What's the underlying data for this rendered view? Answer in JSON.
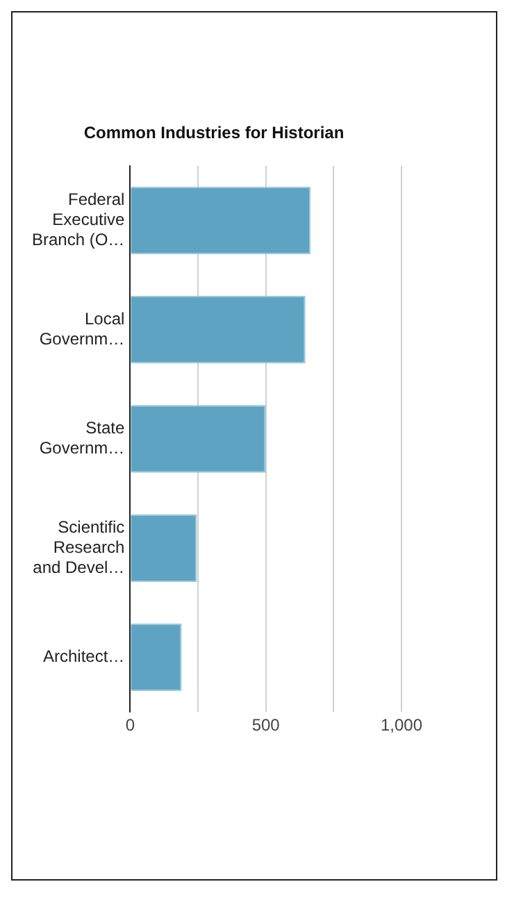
{
  "chart_data": {
    "type": "bar",
    "orientation": "horizontal",
    "title": "Common Industries for Historian",
    "categories": [
      "Federal Executive Branch (O…",
      "Local Governm…",
      "State Governm…",
      "Scientific Research and Devel…",
      "Architect…"
    ],
    "values": [
      665,
      646,
      500,
      246,
      190
    ],
    "color": "#5ea4c2",
    "xlim": [
      0,
      1000
    ],
    "xticks": [
      0,
      {
        "value": 250,
        "label": null
      },
      500,
      {
        "value": 750,
        "label": null
      },
      {
        "value": 1000,
        "label": "1,000"
      }
    ],
    "grid": "x",
    "legend": false
  }
}
